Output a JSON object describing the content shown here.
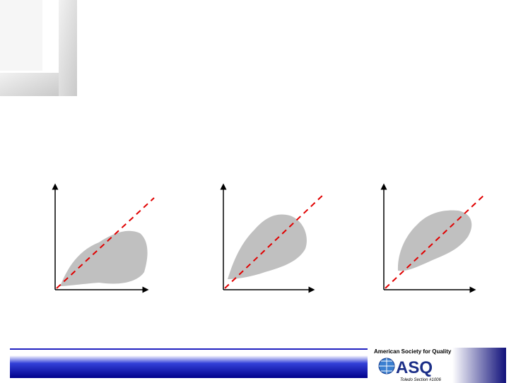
{
  "logo": {
    "organization": "American Society for Quality",
    "mark": "ASQ",
    "section": "Toledo Section #1006"
  }
}
